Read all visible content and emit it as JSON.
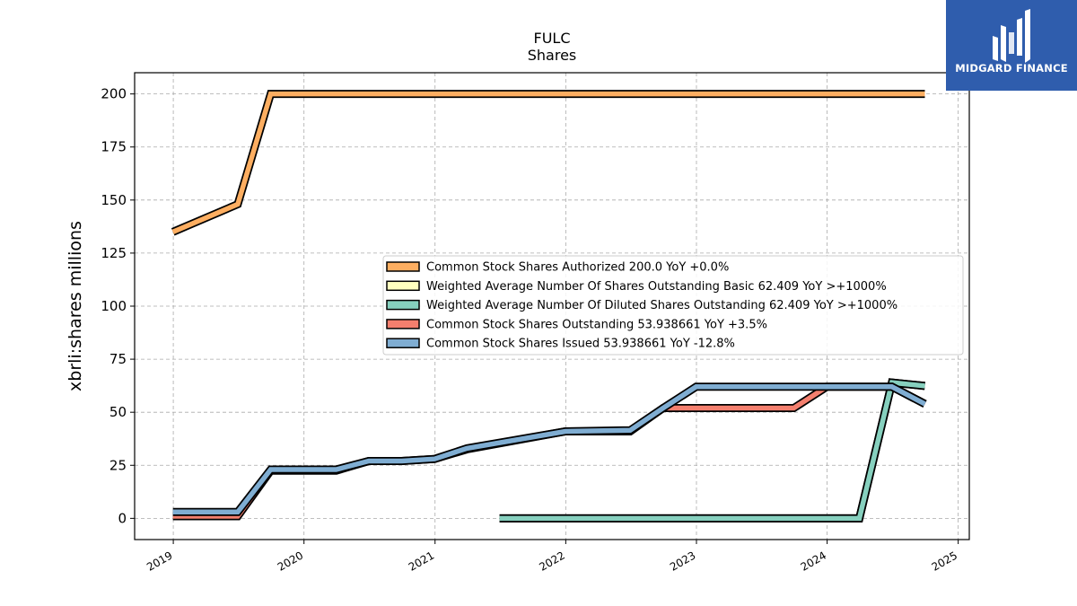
{
  "chart_data": {
    "type": "line",
    "title": "FULC",
    "subtitle": "Shares",
    "xlabel": "",
    "ylabel": "xbrli:shares millions",
    "x_ticks": [
      "2019",
      "2020",
      "2021",
      "2022",
      "2023",
      "2024",
      "2025"
    ],
    "y_ticks": [
      "0",
      "25",
      "50",
      "75",
      "100",
      "125",
      "150",
      "175",
      "200"
    ],
    "xlim": [
      "2018-09-15",
      "2025-02-01"
    ],
    "ylim": [
      -10,
      210
    ],
    "grid": true,
    "legend_position": "center-right",
    "series": [
      {
        "name": "Common Stock Shares Authorized  200.0 YoY +0.0%",
        "color": "#fdae61",
        "points": [
          [
            "2018-12-31",
            135.0
          ],
          [
            "2019-06-30",
            148.0
          ],
          [
            "2019-09-30",
            200.0
          ],
          [
            "2024-09-30",
            200.0
          ]
        ]
      },
      {
        "name": "Weighted Average Number Of Shares Outstanding Basic  62.409 YoY >+1000%",
        "color": "#ffffbf",
        "points": [
          [
            "2021-06-30",
            0.0
          ],
          [
            "2024-03-31",
            0.0
          ],
          [
            "2024-06-30",
            64.0
          ],
          [
            "2024-09-30",
            62.409
          ]
        ]
      },
      {
        "name": "Weighted Average Number Of Diluted Shares Outstanding  62.409 YoY >+1000%",
        "color": "#86d0be",
        "points": [
          [
            "2021-06-30",
            0.0
          ],
          [
            "2024-03-31",
            0.0
          ],
          [
            "2024-06-30",
            64.0
          ],
          [
            "2024-09-30",
            62.409
          ]
        ]
      },
      {
        "name": "Common Stock Shares Outstanding  53.938661 YoY +3.5%",
        "color": "#f47f6e",
        "points": [
          [
            "2018-12-31",
            1.0
          ],
          [
            "2019-06-30",
            1.0
          ],
          [
            "2019-09-30",
            22.5
          ],
          [
            "2020-03-31",
            22.5
          ],
          [
            "2020-06-30",
            27.0
          ],
          [
            "2020-09-30",
            27.0
          ],
          [
            "2020-12-31",
            28.0
          ],
          [
            "2021-03-31",
            32.5
          ],
          [
            "2021-12-31",
            41.0
          ],
          [
            "2022-06-30",
            41.0
          ],
          [
            "2022-09-30",
            52.0
          ],
          [
            "2023-09-30",
            52.0
          ],
          [
            "2023-12-31",
            62.0
          ],
          [
            "2024-06-30",
            62.0
          ],
          [
            "2024-09-30",
            53.938661
          ]
        ]
      },
      {
        "name": "Common Stock Shares Issued  53.938661 YoY -12.8%",
        "color": "#7fadd2",
        "points": [
          [
            "2018-12-31",
            3.0
          ],
          [
            "2019-06-30",
            3.0
          ],
          [
            "2019-09-30",
            23.0
          ],
          [
            "2020-03-31",
            23.0
          ],
          [
            "2020-06-30",
            27.0
          ],
          [
            "2020-09-30",
            27.0
          ],
          [
            "2020-12-31",
            28.0
          ],
          [
            "2021-03-31",
            33.0
          ],
          [
            "2021-12-31",
            41.0
          ],
          [
            "2022-06-30",
            41.5
          ],
          [
            "2022-09-30",
            52.0
          ],
          [
            "2022-12-31",
            62.0
          ],
          [
            "2023-12-31",
            62.0
          ],
          [
            "2024-06-30",
            62.0
          ],
          [
            "2024-09-30",
            53.938661
          ]
        ]
      }
    ]
  },
  "logo": {
    "text": "MIDGARD FINANCE",
    "background": "#2f5dad"
  }
}
